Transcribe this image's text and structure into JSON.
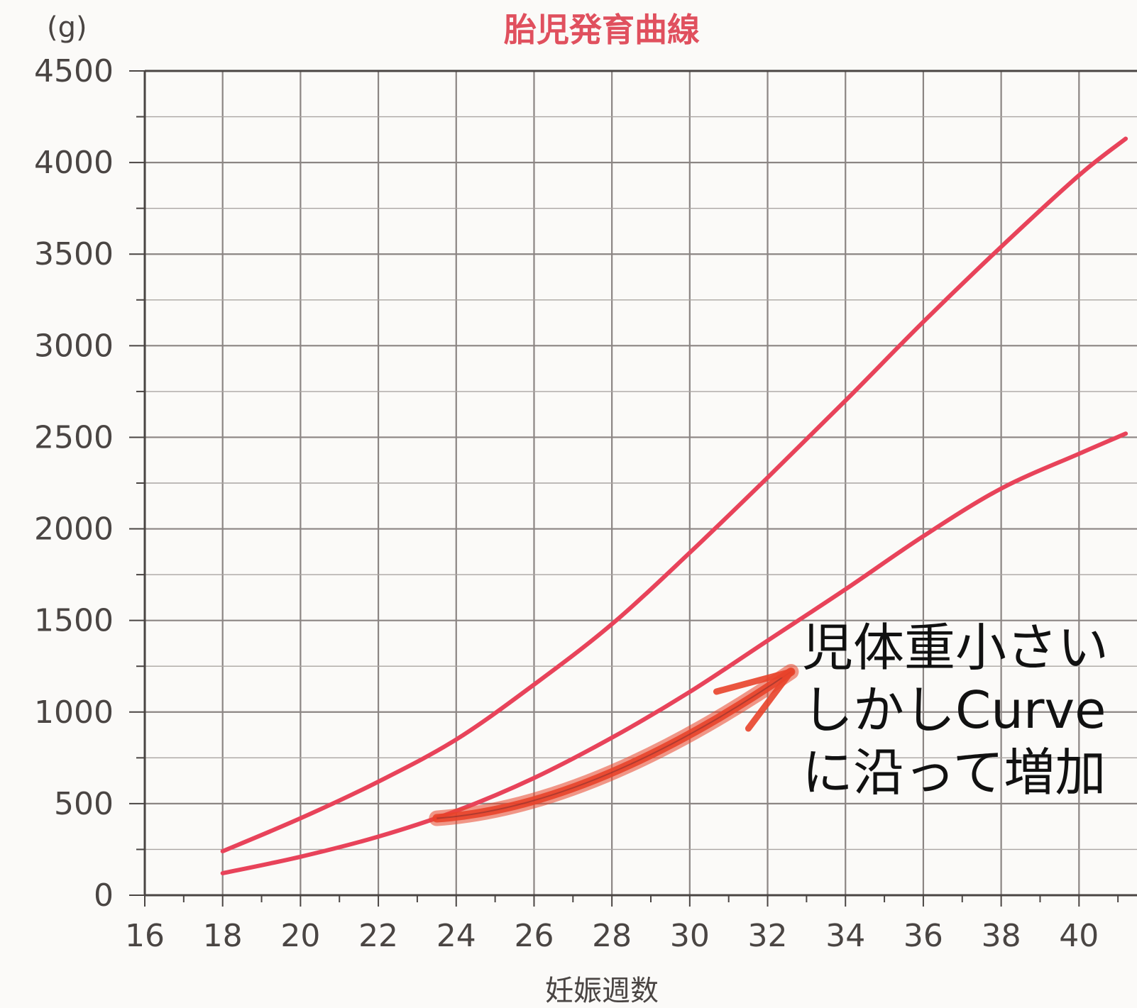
{
  "chart_data": {
    "type": "line",
    "title": "胎児発育曲線",
    "ylabel": "(g)",
    "xlabel": "妊娠週数",
    "xlim": [
      16,
      41.2
    ],
    "ylim": [
      0,
      4500
    ],
    "x_ticks": [
      16,
      18,
      20,
      22,
      24,
      26,
      28,
      30,
      32,
      34,
      36,
      38,
      40
    ],
    "y_ticks": [
      0,
      500,
      1000,
      1500,
      2000,
      2500,
      3000,
      3500,
      4000,
      4500
    ],
    "grid": true,
    "series": [
      {
        "color": "#e8435a",
        "x": [
          18,
          20,
          22,
          24,
          26,
          28,
          30,
          32,
          34,
          36,
          38,
          40,
          41.2
        ],
        "y": [
          240,
          420,
          620,
          850,
          1150,
          1480,
          1870,
          2280,
          2700,
          3130,
          3540,
          3930,
          4130
        ]
      },
      {
        "color": "#e8435a",
        "x": [
          18,
          20,
          22,
          24,
          26,
          28,
          30,
          32,
          34,
          36,
          38,
          40,
          41.2
        ],
        "y": [
          120,
          210,
          320,
          460,
          640,
          860,
          1110,
          1390,
          1670,
          1960,
          2220,
          2410,
          2520
        ]
      }
    ],
    "annotation": {
      "lines": [
        "児体重小さい",
        "しかしCurve",
        "に沿って増加"
      ],
      "arrow": {
        "color": "#e8432a",
        "from": [
          23.5,
          420
        ],
        "to": [
          32.6,
          1220
        ]
      }
    }
  }
}
